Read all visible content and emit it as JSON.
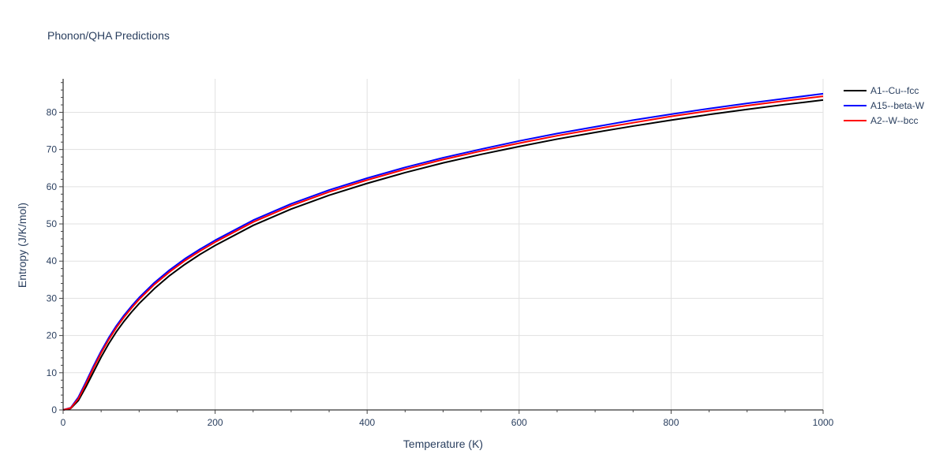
{
  "chart_data": {
    "type": "line",
    "title": "Phonon/QHA Predictions",
    "xlabel": "Temperature (K)",
    "ylabel": "Entropy (J/K/mol)",
    "xlim": [
      0,
      1000
    ],
    "ylim": [
      0,
      89
    ],
    "x_ticks": [
      0,
      200,
      400,
      600,
      800,
      1000
    ],
    "y_ticks": [
      0,
      10,
      20,
      30,
      40,
      50,
      60,
      70,
      80
    ],
    "grid": true,
    "legend_position": "top-right",
    "series": [
      {
        "name": "A1--Cu--fcc",
        "color": "#000000",
        "x": [
          0,
          10,
          20,
          30,
          40,
          50,
          60,
          70,
          80,
          90,
          100,
          120,
          140,
          160,
          180,
          200,
          250,
          300,
          350,
          400,
          450,
          500,
          550,
          600,
          650,
          700,
          750,
          800,
          850,
          900,
          950,
          1000
        ],
        "y": [
          0,
          0.4,
          2.5,
          6.2,
          10.2,
          14.2,
          17.8,
          21.0,
          23.8,
          26.3,
          28.6,
          32.6,
          36.1,
          39.1,
          41.8,
          44.2,
          49.6,
          54.0,
          57.7,
          60.9,
          63.8,
          66.4,
          68.7,
          70.8,
          72.8,
          74.6,
          76.3,
          77.9,
          79.4,
          80.8,
          82.1,
          83.3
        ]
      },
      {
        "name": "A15--beta-W",
        "color": "#0000ff",
        "x": [
          0,
          10,
          20,
          30,
          40,
          50,
          60,
          70,
          80,
          90,
          100,
          120,
          140,
          160,
          180,
          200,
          250,
          300,
          350,
          400,
          450,
          500,
          550,
          600,
          650,
          700,
          750,
          800,
          850,
          900,
          950,
          1000
        ],
        "y": [
          0,
          0.6,
          3.4,
          7.5,
          11.8,
          15.8,
          19.4,
          22.6,
          25.4,
          27.9,
          30.2,
          34.2,
          37.6,
          40.6,
          43.2,
          45.6,
          51.0,
          55.4,
          59.1,
          62.3,
          65.2,
          67.8,
          70.1,
          72.3,
          74.3,
          76.1,
          77.9,
          79.5,
          81.0,
          82.4,
          83.7,
          85.0
        ]
      },
      {
        "name": "A2--W--bcc",
        "color": "#ff0000",
        "x": [
          0,
          10,
          20,
          30,
          40,
          50,
          60,
          70,
          80,
          90,
          100,
          120,
          140,
          160,
          180,
          200,
          250,
          300,
          350,
          400,
          450,
          500,
          550,
          600,
          650,
          700,
          750,
          800,
          850,
          900,
          950,
          1000
        ],
        "y": [
          0,
          0.5,
          3.0,
          7.0,
          11.3,
          15.3,
          18.9,
          22.1,
          24.9,
          27.4,
          29.7,
          33.7,
          37.1,
          40.1,
          42.7,
          45.1,
          50.5,
          54.9,
          58.6,
          61.8,
          64.7,
          67.3,
          69.6,
          71.7,
          73.7,
          75.5,
          77.2,
          78.9,
          80.4,
          81.8,
          83.1,
          84.3
        ]
      }
    ]
  }
}
